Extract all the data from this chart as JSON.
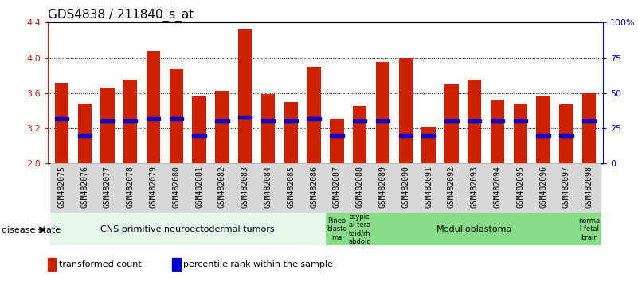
{
  "title": "GDS4838 / 211840_s_at",
  "samples": [
    "GSM482075",
    "GSM482076",
    "GSM482077",
    "GSM482078",
    "GSM482079",
    "GSM482080",
    "GSM482081",
    "GSM482082",
    "GSM482083",
    "GSM482084",
    "GSM482085",
    "GSM482086",
    "GSM482087",
    "GSM482088",
    "GSM482089",
    "GSM482090",
    "GSM482091",
    "GSM482092",
    "GSM482093",
    "GSM482094",
    "GSM482095",
    "GSM482096",
    "GSM482097",
    "GSM482098"
  ],
  "transformed_count": [
    3.72,
    3.48,
    3.66,
    3.75,
    4.08,
    3.88,
    3.56,
    3.63,
    4.32,
    3.59,
    3.5,
    3.9,
    3.3,
    3.45,
    3.95,
    4.0,
    3.22,
    3.7,
    3.75,
    3.53,
    3.48,
    3.57,
    3.47,
    3.6
  ],
  "percentile_rank": [
    32,
    20,
    30,
    30,
    32,
    32,
    20,
    30,
    33,
    30,
    30,
    32,
    20,
    30,
    30,
    20,
    20,
    30,
    30,
    30,
    30,
    20,
    20,
    30
  ],
  "ylim_left": [
    2.8,
    4.4
  ],
  "ylim_right": [
    0,
    100
  ],
  "yticks_left": [
    2.8,
    3.2,
    3.6,
    4.0,
    4.4
  ],
  "ytick_labels_right": [
    "0",
    "25",
    "50",
    "75",
    "100%"
  ],
  "bar_color": "#cc2200",
  "percentile_color": "#0000cc",
  "background_color": "#ffffff",
  "bar_width": 0.6,
  "groups": [
    {
      "label": "CNS primitive neuroectodermal tumors",
      "start": 0,
      "end": 12,
      "color": "#e8f8e8"
    },
    {
      "label": "Pineo\nblasto\nma",
      "start": 12,
      "end": 13,
      "color": "#88dd88"
    },
    {
      "label": "atypic\nal tera\ntoid/rh\nabdoid",
      "start": 13,
      "end": 14,
      "color": "#88dd88"
    },
    {
      "label": "Medulloblastoma",
      "start": 14,
      "end": 23,
      "color": "#88dd88"
    },
    {
      "label": "norma\nl fetal\nbrain",
      "start": 23,
      "end": 24,
      "color": "#88dd88"
    }
  ],
  "disease_state_label": "disease state",
  "legend_items": [
    {
      "color": "#cc2200",
      "label": "transformed count"
    },
    {
      "color": "#0000cc",
      "label": "percentile rank within the sample"
    }
  ],
  "title_fontsize": 11,
  "tick_fontsize": 7,
  "axis_color_left": "#cc2200",
  "axis_color_right": "#0000cc",
  "xtick_bg_color": "#d8d8d8",
  "xtick_border_color": "#666666"
}
